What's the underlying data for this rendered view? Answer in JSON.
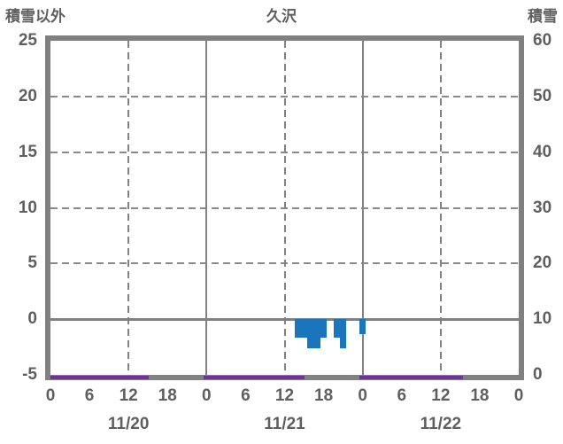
{
  "header": {
    "left_axis_title": "積雪以外",
    "station_name": "久沢",
    "right_axis_title": "積雪"
  },
  "chart_data": {
    "type": "bar",
    "title": "久沢",
    "left_axis": {
      "title": "積雪以外",
      "range": [
        -5,
        25
      ],
      "ticks": [
        "25",
        "20",
        "15",
        "10",
        "5",
        "0",
        "-5"
      ],
      "tick_values": [
        25,
        20,
        15,
        10,
        5,
        0,
        -5
      ]
    },
    "right_axis": {
      "title": "積雪",
      "range": [
        0,
        60
      ],
      "ticks": [
        "60",
        "50",
        "40",
        "30",
        "20",
        "10",
        "0"
      ],
      "tick_values": [
        60,
        50,
        40,
        30,
        20,
        10,
        0
      ]
    },
    "x_axis": {
      "total_hours": 72,
      "hour_tick_interval": 6,
      "hour_tick_labels": [
        "0",
        "6",
        "12",
        "18",
        "0",
        "6",
        "12",
        "18",
        "0",
        "6",
        "12",
        "18",
        "0"
      ],
      "day_labels": [
        "11/20",
        "11/21",
        "11/22"
      ],
      "solid_gridline_hours": [
        24,
        48
      ],
      "dashed_gridline_hours": [
        12,
        36,
        60
      ],
      "dashed_horizontal_values": [
        20,
        15,
        10,
        5
      ]
    },
    "series": [
      {
        "name": "hourly-negative-bars",
        "type": "bar",
        "color": "#1b75bc",
        "points": [
          {
            "day": "11/21",
            "hour": 14,
            "value": -1.5
          },
          {
            "day": "11/21",
            "hour": 15,
            "value": -1.5
          },
          {
            "day": "11/21",
            "hour": 16,
            "value": -2.5
          },
          {
            "day": "11/21",
            "hour": 17,
            "value": -2.5
          },
          {
            "day": "11/21",
            "hour": 18,
            "value": -1.5
          },
          {
            "day": "11/21",
            "hour": 20,
            "value": -1.5
          },
          {
            "day": "11/21",
            "hour": 21,
            "value": -2.5
          },
          {
            "day": "11/22",
            "hour": 0,
            "value": -1.2
          }
        ]
      },
      {
        "name": "snow-depth-line",
        "type": "line",
        "axis": "right",
        "color": "#7030a0",
        "value": 0,
        "segments_abs_hours": [
          [
            0,
            15.1
          ],
          [
            23.5,
            39.1
          ],
          [
            47.5,
            63.4
          ]
        ]
      }
    ],
    "colors": {
      "axis_gray": "#808080",
      "text_gray": "#5f5f5f",
      "bar_blue": "#1b75bc",
      "snow_purple": "#7030a0"
    }
  }
}
